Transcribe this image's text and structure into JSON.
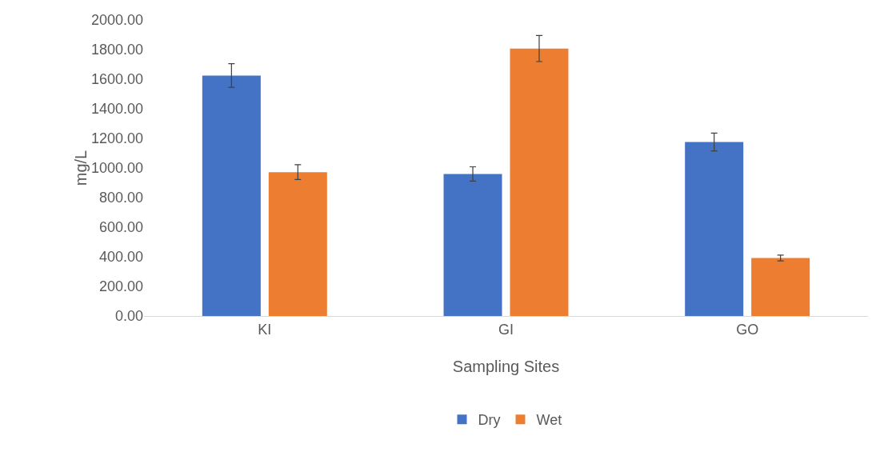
{
  "chart_data": {
    "type": "bar",
    "xlabel": "Sampling Sites",
    "ylabel": "mg/L",
    "categories": [
      "KI",
      "GI",
      "GO"
    ],
    "series": [
      {
        "name": "Dry",
        "color": "#4472c4",
        "values": [
          1625,
          960,
          1176
        ],
        "errors": [
          80,
          48,
          60
        ]
      },
      {
        "name": "Wet",
        "color": "#ed7d31",
        "values": [
          972,
          1807,
          392
        ],
        "errors": [
          50,
          88,
          20
        ]
      }
    ],
    "ylim": [
      0,
      2000
    ],
    "yticks": [
      {
        "value": 0,
        "label": "0.00"
      },
      {
        "value": 200,
        "label": "200.00"
      },
      {
        "value": 400,
        "label": "400.00"
      },
      {
        "value": 600,
        "label": "600.00"
      },
      {
        "value": 800,
        "label": "800.00"
      },
      {
        "value": 1000,
        "label": "1000.00"
      },
      {
        "value": 1200,
        "label": "1200.00"
      },
      {
        "value": 1400,
        "label": "1400.00"
      },
      {
        "value": 1600,
        "label": "1600.00"
      },
      {
        "value": 1800,
        "label": "1800.00"
      },
      {
        "value": 2000,
        "label": "2000.00"
      }
    ],
    "grid": false,
    "legend": "bottom"
  }
}
